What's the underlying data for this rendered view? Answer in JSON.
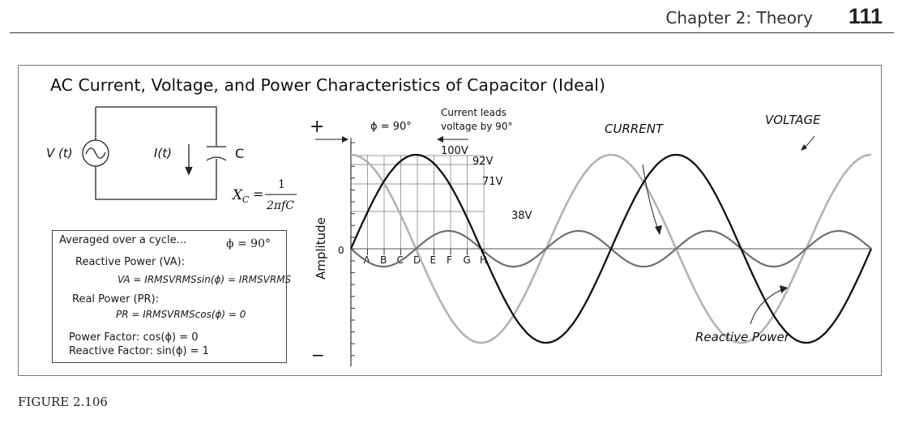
{
  "header": {
    "chapter": "Chapter 2: Theory",
    "page_number": "111"
  },
  "figure": {
    "title": "AC Current, Voltage, and Power Characteristics of Capacitor (Ideal)",
    "caption": "FIGURE 2.106"
  },
  "circuit": {
    "source_label": "V (t)",
    "current_label": "I(t)",
    "capacitor_label": "C",
    "reactance_lhs": "X",
    "reactance_sub": "C",
    "reactance_eq": "=",
    "reactance_num": "1",
    "reactance_den": "2πfC"
  },
  "info_box": {
    "averaged": "Averaged over a cycle...",
    "phi": "ϕ = 90°",
    "reactive_power_heading": "Reactive Power (VA):",
    "reactive_power_formula": "VA = IRMSVRMSsin(ϕ) = IRMSVRMS",
    "real_power_heading": "Real Power (PR):",
    "real_power_formula": "PR = IRMSVRMScos(ϕ) = 0",
    "power_factor": "Power Factor: cos(ϕ) = 0",
    "reactive_factor": "Reactive Factor: sin(ϕ) = 1"
  },
  "plot": {
    "ylabel": "Amplitude",
    "plus": "+",
    "minus": "−",
    "zero": "0",
    "phase_label": "ϕ = 90°",
    "lead_note_line1": "Current leads",
    "lead_note_line2": "voltage by 90°",
    "current_label": "CURRENT",
    "voltage_label": "VOLTAGE",
    "reactive_label": "Reactive Power",
    "point_labels": [
      "A",
      "B",
      "C",
      "D",
      "E",
      "F",
      "G",
      "H"
    ],
    "voltage_labels": [
      "100V",
      "92V",
      "71V",
      "38V"
    ]
  },
  "chart_data": {
    "type": "line",
    "ylabel": "Amplitude",
    "x_markers": [
      "A",
      "B",
      "C",
      "D",
      "E",
      "F",
      "G",
      "H"
    ],
    "annotated_voltage_values": [
      {
        "x": "D",
        "value": 100,
        "label": "100V"
      },
      {
        "x": "E",
        "value": 92,
        "label": "92V"
      },
      {
        "x": "F",
        "value": 71,
        "label": "71V"
      },
      {
        "x": "G",
        "value": 38,
        "label": "38V"
      }
    ],
    "series": [
      {
        "name": "VOLTAGE",
        "waveform": "sine",
        "phase_deg": 0,
        "cycles": 2,
        "relative_amplitude": 1.0,
        "color": "#111111"
      },
      {
        "name": "CURRENT",
        "waveform": "cosine",
        "phase_deg": 90,
        "cycles": 2,
        "relative_amplitude": 1.0,
        "color": "#b3b3b3"
      },
      {
        "name": "Reactive Power",
        "waveform": "sine",
        "frequency_multiple": 2,
        "relative_amplitude": 0.19,
        "color": "#6f6f6f"
      }
    ]
  }
}
